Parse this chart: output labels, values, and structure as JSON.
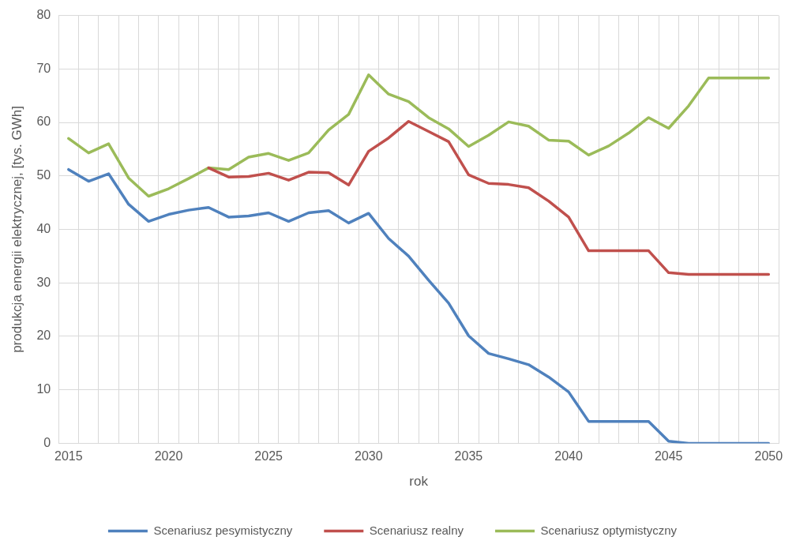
{
  "chart_data": {
    "type": "line",
    "xlabel": "rok",
    "ylabel": "produkcja energii elektrycznej, [tys. GWh]",
    "categories": [
      "2015",
      null,
      null,
      null,
      null,
      "2020",
      null,
      null,
      null,
      null,
      "2025",
      null,
      null,
      null,
      null,
      "2030",
      null,
      null,
      null,
      null,
      "2035",
      null,
      null,
      null,
      null,
      "2040",
      null,
      null,
      null,
      null,
      "2045",
      null,
      null,
      null,
      null,
      "2050"
    ],
    "ylim": [
      0,
      80
    ],
    "yticks": [
      0,
      10,
      20,
      30,
      40,
      50,
      60,
      70,
      80
    ],
    "grid": true,
    "legend": "bottom",
    "marker": "none",
    "line_style": "solid",
    "series": [
      {
        "name": "Scenariusz pesymistyczny",
        "color": "#4f81bd",
        "values": [
          51.2,
          49,
          50.4,
          44.7,
          41.5,
          42.8,
          43.6,
          44.1,
          42.3,
          42.5,
          43.1,
          41.5,
          43.1,
          43.5,
          41.2,
          43,
          38.3,
          35,
          30.5,
          26.2,
          20.1,
          16.8,
          15.8,
          14.7,
          12.4,
          9.6,
          4.1,
          4.1,
          4.1,
          4.1,
          0.4,
          0,
          0,
          0,
          0,
          0
        ]
      },
      {
        "name": "Scenariusz realny",
        "color": "#c0504d",
        "values": [
          null,
          null,
          null,
          null,
          null,
          null,
          null,
          51.5,
          49.8,
          49.9,
          50.5,
          49.2,
          50.7,
          50.6,
          48.3,
          54.6,
          57.1,
          60.2,
          58.3,
          56.4,
          50.2,
          48.6,
          48.4,
          47.8,
          45.3,
          42.3,
          36,
          36,
          36,
          36,
          31.9,
          31.6,
          31.6,
          31.6,
          31.6,
          31.6
        ]
      },
      {
        "name": "Scenariusz optymistyczny",
        "color": "#9bbb59",
        "values": [
          57,
          54.3,
          56,
          49.6,
          46.2,
          47.6,
          49.5,
          51.5,
          51.2,
          53.5,
          54.2,
          52.9,
          54.3,
          58.6,
          61.5,
          68.9,
          65.3,
          63.9,
          60.9,
          58.8,
          55.5,
          57.6,
          60.1,
          59.3,
          56.7,
          56.5,
          53.9,
          55.6,
          58,
          60.9,
          58.9,
          63.1,
          68.3,
          68.3,
          68.3,
          68.3
        ]
      }
    ]
  }
}
